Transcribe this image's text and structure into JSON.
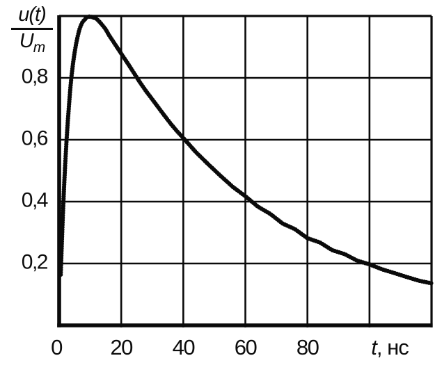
{
  "chart_data": {
    "type": "line",
    "title": "",
    "xlabel": "t, нс",
    "xlabel_parts": {
      "variable": "t",
      "unit": ", нс"
    },
    "ylabel": "u(t)/Um",
    "ylabel_parts": {
      "numerator": "u(t)",
      "denominator_main": "U",
      "denominator_sub": "m"
    },
    "xlim": [
      0,
      120
    ],
    "ylim": [
      0,
      1.0
    ],
    "grid": true,
    "legend": false,
    "line_color": "#0a0a0a",
    "x_gridlines": [
      0,
      20,
      40,
      60,
      80,
      100,
      120
    ],
    "y_gridlines": [
      0,
      0.2,
      0.4,
      0.6,
      0.8,
      1.0
    ],
    "x_ticks": [
      {
        "value": 0,
        "label": "0"
      },
      {
        "value": 20,
        "label": "20"
      },
      {
        "value": 40,
        "label": "40"
      },
      {
        "value": 60,
        "label": "60"
      },
      {
        "value": 80,
        "label": "80"
      }
    ],
    "y_ticks": [
      {
        "value": 0.8,
        "label": "0,8"
      },
      {
        "value": 0.6,
        "label": "0,6"
      },
      {
        "value": 0.4,
        "label": "0,4"
      },
      {
        "value": 0.2,
        "label": "0,2"
      }
    ],
    "series": [
      {
        "name": "u(t)/Um",
        "peak": {
          "t": 10,
          "u": 1.0
        },
        "points": [
          [
            0.5,
            0.167
          ],
          [
            0.8,
            0.255
          ],
          [
            1,
            0.309
          ],
          [
            1.3,
            0.384
          ],
          [
            1.6,
            0.451
          ],
          [
            2,
            0.532
          ],
          [
            2.4,
            0.602
          ],
          [
            2.8,
            0.664
          ],
          [
            3.2,
            0.717
          ],
          [
            3.6,
            0.764
          ],
          [
            4,
            0.804
          ],
          [
            4.5,
            0.847
          ],
          [
            5,
            0.882
          ],
          [
            5.5,
            0.911
          ],
          [
            6,
            0.935
          ],
          [
            6.5,
            0.954
          ],
          [
            7,
            0.968
          ],
          [
            7.5,
            0.98
          ],
          [
            8,
            0.988
          ],
          [
            9,
            0.998
          ],
          [
            10,
            1.0
          ],
          [
            11,
            0.997
          ],
          [
            12,
            0.99
          ],
          [
            13,
            0.98
          ],
          [
            14,
            0.968
          ],
          [
            15,
            0.954
          ],
          [
            16,
            0.94
          ],
          [
            18,
            0.91
          ],
          [
            20,
            0.878
          ],
          [
            22,
            0.847
          ],
          [
            24,
            0.817
          ],
          [
            26,
            0.787
          ],
          [
            28,
            0.758
          ],
          [
            30,
            0.73
          ],
          [
            32,
            0.703
          ],
          [
            34,
            0.677
          ],
          [
            36,
            0.652
          ],
          [
            38,
            0.628
          ],
          [
            40,
            0.605
          ],
          [
            44,
            0.561
          ],
          [
            48,
            0.521
          ],
          [
            52,
            0.483
          ],
          [
            56,
            0.448
          ],
          [
            60,
            0.416
          ],
          [
            64,
            0.386
          ],
          [
            68,
            0.358
          ],
          [
            72,
            0.332
          ],
          [
            76,
            0.308
          ],
          [
            80,
            0.285
          ],
          [
            84,
            0.265
          ],
          [
            88,
            0.246
          ],
          [
            92,
            0.228
          ],
          [
            96,
            0.211
          ],
          [
            100,
            0.196
          ],
          [
            104,
            0.182
          ],
          [
            108,
            0.169
          ],
          [
            112,
            0.156
          ],
          [
            116,
            0.145
          ],
          [
            120,
            0.135
          ]
        ]
      }
    ]
  }
}
